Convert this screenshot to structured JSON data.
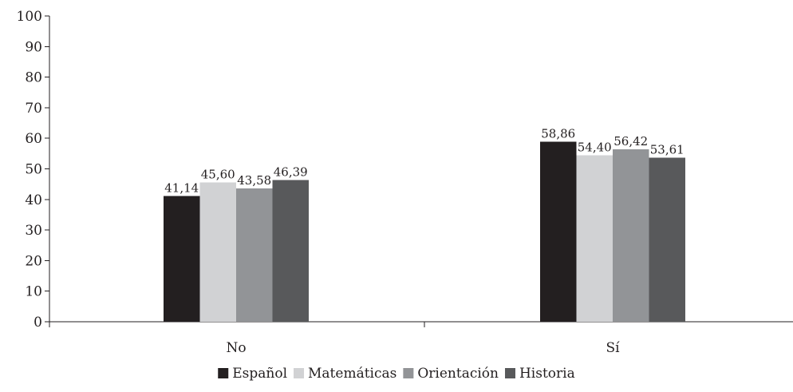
{
  "chart_data": {
    "type": "bar",
    "categories": [
      "No",
      "Sí"
    ],
    "series": [
      {
        "name": "Español",
        "color": "#231f20",
        "values": [
          41.14,
          58.86
        ],
        "labels": [
          "41,14",
          "58,86"
        ]
      },
      {
        "name": "Matemáticas",
        "color": "#d1d2d4",
        "values": [
          45.6,
          54.4
        ],
        "labels": [
          "45,60",
          "54,40"
        ]
      },
      {
        "name": "Orientación",
        "color": "#929497",
        "values": [
          43.58,
          56.42
        ],
        "labels": [
          "43,58",
          "56,42"
        ]
      },
      {
        "name": "Historia",
        "color": "#58595b",
        "values": [
          46.39,
          53.61
        ],
        "labels": [
          "46,39",
          "53,61"
        ]
      }
    ],
    "ylim": [
      0,
      100
    ],
    "yticks": [
      0,
      10,
      20,
      30,
      40,
      50,
      60,
      70,
      80,
      90,
      100
    ],
    "legend_position": "bottom-center",
    "grid": false
  }
}
